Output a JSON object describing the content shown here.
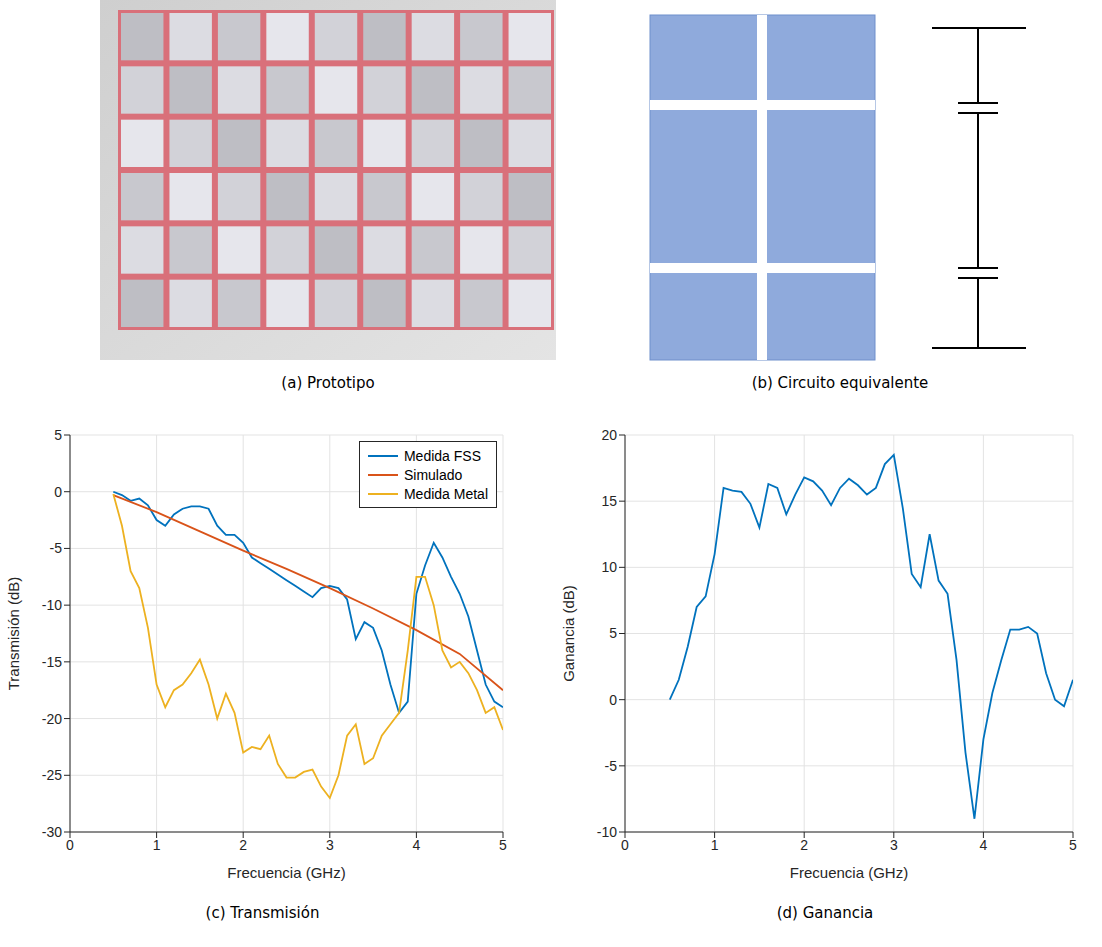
{
  "panels": [
    {
      "caption": "(a) Prototipo"
    },
    {
      "caption": "(b) Circuito equivalente"
    }
  ],
  "chart_data": [
    {
      "type": "line",
      "title": "(c) Transmisión",
      "x_label": "Frecuencia (GHz)",
      "y_label": "Transmisión (dB)",
      "xlim": [
        0,
        5
      ],
      "xticks": [
        0,
        1,
        2,
        3,
        4,
        5
      ],
      "ylim": [
        -30,
        5
      ],
      "yticks": [
        -30,
        -25,
        -20,
        -15,
        -10,
        -5,
        0,
        5
      ],
      "grid": true,
      "legend": "top-right",
      "series": [
        {
          "name": "Medida FSS",
          "color": "#0072bd",
          "x": [
            0.5,
            0.6,
            0.7,
            0.8,
            0.9,
            1.0,
            1.1,
            1.2,
            1.3,
            1.4,
            1.5,
            1.6,
            1.7,
            1.8,
            1.9,
            2.0,
            2.1,
            2.2,
            2.3,
            2.4,
            2.5,
            2.6,
            2.7,
            2.8,
            2.9,
            3.0,
            3.1,
            3.2,
            3.3,
            3.4,
            3.5,
            3.6,
            3.7,
            3.8,
            3.9,
            4.0,
            4.1,
            4.2,
            4.3,
            4.4,
            4.5,
            4.6,
            4.7,
            4.8,
            4.9,
            5.0
          ],
          "values": [
            0,
            -0.3,
            -0.8,
            -0.6,
            -1.2,
            -2.5,
            -3,
            -2,
            -1.5,
            -1.3,
            -1.3,
            -1.5,
            -3,
            -3.8,
            -3.8,
            -4.5,
            -5.8,
            -6.3,
            -6.8,
            -7.3,
            -7.8,
            -8.3,
            -8.8,
            -9.3,
            -8.5,
            -8.3,
            -8.5,
            -9.5,
            -13,
            -11.5,
            -12,
            -14,
            -17,
            -19.5,
            -18.5,
            -9,
            -6.5,
            -4.5,
            -5.8,
            -7.5,
            -9,
            -11,
            -14,
            -17,
            -18.5,
            -19
          ]
        },
        {
          "name": "Simulado",
          "color": "#d95319",
          "x": [
            0.5,
            1.0,
            1.5,
            2.0,
            2.5,
            3.0,
            3.5,
            4.0,
            4.5,
            5.0
          ],
          "values": [
            -0.3,
            -1.8,
            -3.5,
            -5.2,
            -6.8,
            -8.5,
            -10.3,
            -12.2,
            -14.3,
            -17.5
          ]
        },
        {
          "name": "Medida Metal",
          "color": "#edb120",
          "x": [
            0.5,
            0.6,
            0.7,
            0.8,
            0.9,
            1.0,
            1.1,
            1.2,
            1.3,
            1.4,
            1.5,
            1.6,
            1.7,
            1.8,
            1.9,
            2.0,
            2.1,
            2.2,
            2.3,
            2.4,
            2.5,
            2.6,
            2.7,
            2.8,
            2.9,
            3.0,
            3.1,
            3.2,
            3.3,
            3.4,
            3.5,
            3.6,
            3.7,
            3.8,
            3.9,
            4.0,
            4.1,
            4.2,
            4.3,
            4.4,
            4.5,
            4.6,
            4.7,
            4.8,
            4.9,
            5.0
          ],
          "values": [
            -0.2,
            -3,
            -7,
            -8.5,
            -12,
            -17,
            -19,
            -17.5,
            -17,
            -16,
            -14.8,
            -17,
            -20,
            -17.8,
            -19.5,
            -23,
            -22.5,
            -22.7,
            -21.5,
            -24,
            -25.2,
            -25.2,
            -24.7,
            -24.5,
            -26,
            -27,
            -25,
            -21.5,
            -20.5,
            -24,
            -23.5,
            -21.5,
            -20.5,
            -19.5,
            -14,
            -7.5,
            -7.5,
            -10,
            -14,
            -15.5,
            -15,
            -16,
            -17.5,
            -19.5,
            -19,
            -21
          ]
        }
      ]
    },
    {
      "type": "line",
      "title": "(d) Ganancia",
      "x_label": "Frecuencia (GHz)",
      "y_label": "Ganancia (dB)",
      "xlim": [
        0,
        5
      ],
      "xticks": [
        0,
        1,
        2,
        3,
        4,
        5
      ],
      "ylim": [
        -10,
        20
      ],
      "yticks": [
        -10,
        -5,
        0,
        5,
        10,
        15,
        20
      ],
      "grid": true,
      "series": [
        {
          "color": "#0072bd",
          "x": [
            0.5,
            0.6,
            0.7,
            0.8,
            0.9,
            1.0,
            1.1,
            1.2,
            1.3,
            1.4,
            1.5,
            1.6,
            1.7,
            1.8,
            1.9,
            2.0,
            2.1,
            2.2,
            2.3,
            2.4,
            2.5,
            2.6,
            2.7,
            2.8,
            2.9,
            3.0,
            3.1,
            3.2,
            3.3,
            3.4,
            3.5,
            3.6,
            3.7,
            3.8,
            3.9,
            4.0,
            4.1,
            4.2,
            4.3,
            4.4,
            4.5,
            4.6,
            4.7,
            4.8,
            4.9,
            5.0
          ],
          "values": [
            0,
            1.5,
            4,
            7,
            7.8,
            11,
            16,
            15.8,
            15.7,
            14.8,
            13,
            16.3,
            16,
            14,
            15.5,
            16.8,
            16.5,
            15.8,
            14.7,
            16,
            16.7,
            16.2,
            15.5,
            16,
            17.8,
            18.5,
            14.5,
            9.5,
            8.5,
            12.5,
            9,
            8,
            3,
            -4,
            -9,
            -3,
            0.5,
            3,
            5.3,
            5.3,
            5.5,
            5,
            2,
            0,
            -0.5,
            1.5
          ]
        }
      ]
    }
  ]
}
